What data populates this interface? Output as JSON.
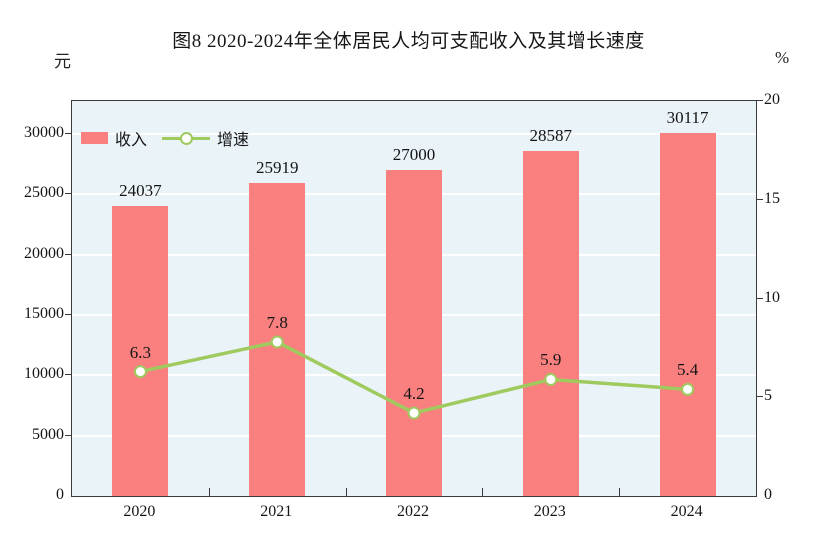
{
  "title": "图8 2020-2024年全体居民人均可支配收入及其增长速度",
  "left_axis_unit": "元",
  "right_axis_unit": "%",
  "legend": [
    {
      "label": "收入",
      "swatch": "bar"
    },
    {
      "label": "增速",
      "swatch": "line-marker"
    }
  ],
  "colors": {
    "bar": "#fa8080",
    "line": "#9fca5e",
    "marker_fill": "#ffffff",
    "plot_background": "#eaf3f8",
    "gridline": "#ffffff",
    "frame": "#3a3a3a",
    "text": "#151515"
  },
  "chart_data": {
    "type": "bar",
    "combo": "bar series on left axis with line+marker series on right axis",
    "title": "图8 2020-2024年全体居民人均可支配收入及其增长速度",
    "categories": [
      "2020",
      "2021",
      "2022",
      "2023",
      "2024"
    ],
    "series": [
      {
        "name": "收入",
        "type": "bar",
        "axis": "left",
        "unit": "元",
        "values": [
          24037,
          25919,
          27000,
          28587,
          30117
        ]
      },
      {
        "name": "增速",
        "type": "line",
        "axis": "right",
        "unit": "%",
        "values": [
          6.3,
          7.8,
          4.2,
          5.9,
          5.4
        ]
      }
    ],
    "left_axis": {
      "label": "元",
      "ticks": [
        0,
        5000,
        10000,
        15000,
        20000,
        25000,
        30000
      ],
      "tick_step": 5000
    },
    "right_axis": {
      "label": "%",
      "ticks": [
        0,
        5,
        10,
        15,
        20
      ],
      "range": [
        0,
        20
      ]
    },
    "grid": true,
    "gridlines": "horizontal white lines at every 5000 on left axis",
    "legend_position": "inside plot, top-left",
    "data_labels": "values shown above each bar and above each line marker"
  }
}
